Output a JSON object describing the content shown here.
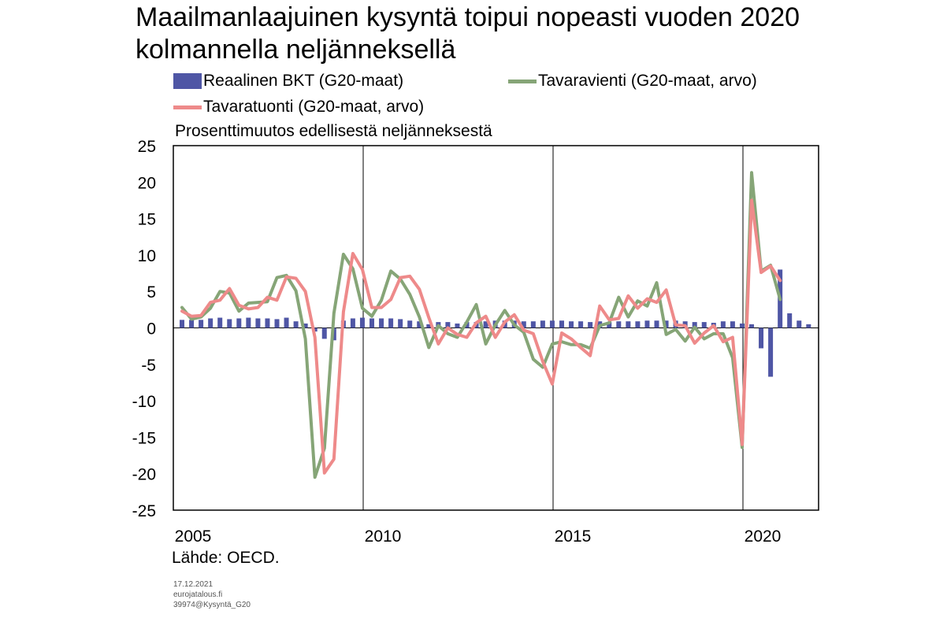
{
  "title_line1": "Maailmanlaajuinen kysyntä toipui nopeasti vuoden 2020",
  "title_line2": "kolmannella neljänneksellä",
  "source": "Lähde: OECD.",
  "meta": {
    "date": "17.12.2021",
    "site": "eurojatalous.fi",
    "ref": "39974@Kysyntä_G20"
  },
  "colors": {
    "gdp": "#4f56a5",
    "exports": "#86a577",
    "imports": "#ee8a8a"
  },
  "chart_data": {
    "type": "bar+line",
    "ylabel": "Prosenttimuutos edellisestä neljänneksestä",
    "ylim": [
      -25,
      25
    ],
    "yticks": [
      25,
      20,
      15,
      10,
      5,
      0,
      -5,
      -10,
      -15,
      -20,
      -25
    ],
    "xticks": [
      "2005",
      "2010",
      "2015",
      "2020"
    ],
    "x_start": "2005 Q1",
    "frequency": "quarterly",
    "grid": "vertical lines at year ticks",
    "legend_position": "top",
    "series": [
      {
        "name": "Reaalinen BKT (G20-maat)",
        "type": "bar",
        "color": "#4f56a5",
        "values": [
          1.1,
          1.1,
          1.1,
          1.3,
          1.4,
          1.2,
          1.3,
          1.4,
          1.3,
          1.3,
          1.2,
          1.4,
          0.9,
          0.6,
          -0.5,
          -1.5,
          -1.7,
          1.0,
          1.3,
          1.4,
          1.3,
          1.3,
          1.3,
          1.2,
          1.0,
          0.9,
          0.5,
          0.8,
          0.8,
          0.6,
          0.8,
          0.8,
          0.9,
          1.0,
          1.0,
          1.0,
          0.9,
          0.9,
          1.0,
          1.0,
          1.0,
          0.9,
          0.9,
          0.8,
          0.9,
          0.8,
          0.9,
          0.9,
          0.9,
          1.0,
          1.0,
          1.0,
          1.0,
          0.9,
          0.8,
          0.8,
          0.7,
          0.9,
          0.9,
          0.6,
          0.5,
          -2.8,
          -6.7,
          8.0,
          2.0,
          1.0,
          0.5
        ]
      },
      {
        "name": "Tavaravienti (G20-maat, arvo)",
        "type": "line",
        "color": "#86a577",
        "values": [
          2.8,
          1.2,
          1.5,
          2.7,
          5.0,
          4.8,
          2.3,
          3.4,
          3.5,
          3.6,
          6.9,
          7.2,
          5.1,
          -1.5,
          -20.5,
          -16.5,
          2.0,
          10.1,
          8.1,
          2.7,
          1.6,
          3.8,
          7.8,
          6.7,
          4.6,
          1.5,
          -2.7,
          0.3,
          -0.8,
          -1.3,
          0.8,
          3.2,
          -2.2,
          0.4,
          2.4,
          0.4,
          -0.6,
          -4.3,
          -5.4,
          -2.2,
          -1.9,
          -2.3,
          -2.3,
          -2.8,
          0.3,
          0.7,
          4.2,
          1.5,
          3.7,
          3.0,
          6.2,
          -0.9,
          -0.2,
          -1.8,
          0.1,
          -1.5,
          -0.8,
          -0.8,
          -4.1,
          -16.4,
          21.3,
          7.8,
          8.6,
          3.9
        ]
      },
      {
        "name": "Tavaratuonti (G20-maat, arvo)",
        "type": "line",
        "color": "#ee8a8a",
        "values": [
          2.3,
          1.6,
          1.7,
          3.5,
          3.8,
          5.4,
          3.1,
          2.6,
          2.8,
          4.2,
          3.8,
          7.0,
          6.8,
          5.0,
          -1.3,
          -19.9,
          -18.0,
          2.2,
          10.2,
          8.0,
          2.8,
          2.8,
          3.9,
          6.9,
          7.1,
          5.3,
          1.4,
          -2.2,
          0.0,
          -0.9,
          -1.3,
          0.7,
          1.6,
          -1.3,
          0.8,
          1.8,
          -0.3,
          -0.8,
          -4.6,
          -7.7,
          -0.7,
          -1.5,
          -2.7,
          -3.8,
          3.0,
          1.1,
          1.3,
          4.4,
          2.7,
          4.0,
          3.5,
          5.2,
          0.4,
          0.3,
          -2.1,
          -0.7,
          0.3,
          -1.9,
          -1.3,
          -16.0,
          17.5,
          7.6,
          8.5,
          6.5
        ]
      }
    ]
  }
}
